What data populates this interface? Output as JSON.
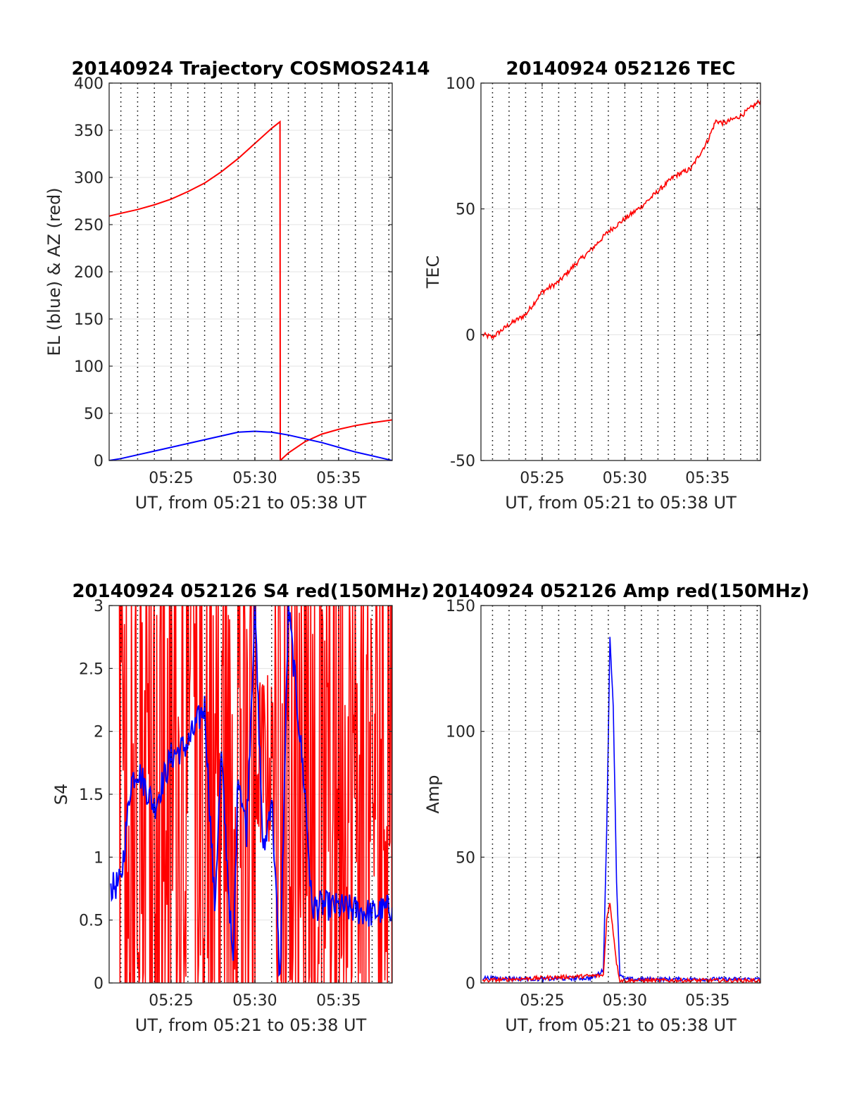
{
  "chart_data": [
    {
      "type": "line",
      "title": "20140924 Trajectory COSMOS2414",
      "xlabel": "UT, from 05:21 to 05:38 UT",
      "ylabel": "EL (blue) & AZ (red)",
      "xlim_minutes": [
        321.3,
        338.2
      ],
      "ylim": [
        0,
        400
      ],
      "yticks": [
        0,
        50,
        100,
        150,
        200,
        250,
        300,
        350,
        400
      ],
      "xticks": [
        "05:25",
        "05:30",
        "05:35"
      ],
      "grid": "y solid, x dotted minute lines",
      "series": [
        {
          "color": "#ff0000",
          "x": [
            "05:21:18",
            "05:22",
            "05:23",
            "05:24",
            "05:25",
            "05:26",
            "05:27",
            "05:28",
            "05:29",
            "05:30",
            "05:31",
            "05:31:30",
            "05:31:31",
            "05:32",
            "05:33",
            "05:34",
            "05:35",
            "05:36",
            "05:37",
            "05:38:12"
          ],
          "values": [
            259,
            262,
            266,
            271,
            277,
            285,
            294,
            306,
            320,
            336,
            352,
            359,
            0,
            8,
            20,
            28,
            33,
            37,
            40,
            43
          ]
        },
        {
          "color": "#0000ff",
          "x": [
            "05:21:18",
            "05:22",
            "05:23",
            "05:24",
            "05:25",
            "05:26",
            "05:27",
            "05:28",
            "05:29",
            "05:30",
            "05:31",
            "05:32",
            "05:33",
            "05:34",
            "05:35",
            "05:36",
            "05:37",
            "05:38:12"
          ],
          "values": [
            0,
            2,
            6,
            10,
            14,
            18,
            22,
            26,
            30,
            31,
            30,
            27,
            23,
            19,
            14,
            9,
            5,
            0
          ]
        }
      ]
    },
    {
      "type": "line",
      "title": "20140924 052126 TEC",
      "xlabel": "UT, from 05:21 to 05:38 UT",
      "ylabel": "TEC",
      "xlim_minutes": [
        321.3,
        338.2
      ],
      "ylim": [
        -50,
        100
      ],
      "yticks": [
        -50,
        0,
        50,
        100
      ],
      "xticks": [
        "05:25",
        "05:30",
        "05:35"
      ],
      "grid": "y solid, x dotted minute lines",
      "series": [
        {
          "color": "#ff0000",
          "x": [
            "05:21:24",
            "05:22",
            "05:23",
            "05:24",
            "05:25",
            "05:26",
            "05:27",
            "05:28",
            "05:29",
            "05:30",
            "05:31",
            "05:32",
            "05:33",
            "05:34",
            "05:35",
            "05:35:30",
            "05:36",
            "05:37",
            "05:38:12"
          ],
          "values": [
            0,
            -1,
            4,
            8,
            17,
            21,
            28,
            34,
            41,
            46,
            51,
            57,
            63,
            66,
            77,
            85,
            84,
            87,
            93
          ]
        }
      ]
    },
    {
      "type": "line",
      "title": "20140924 052126 S4 red(150MHz)",
      "xlabel": "UT, from 05:21 to 05:38 UT",
      "ylabel": "S4",
      "xlim_minutes": [
        321.3,
        338.2
      ],
      "ylim": [
        0,
        3
      ],
      "yticks": [
        0,
        0.5,
        1,
        1.5,
        2,
        2.5,
        3
      ],
      "xticks": [
        "05:25",
        "05:30",
        "05:35"
      ],
      "grid": "y solid, x dotted minute lines",
      "series": [
        {
          "color": "#0000ff",
          "x": [
            "05:21:24",
            "05:22",
            "05:22:36",
            "05:23",
            "05:24",
            "05:25",
            "05:26",
            "05:27",
            "05:27:36",
            "05:28",
            "05:28:42",
            "05:29",
            "05:29:30",
            "05:30",
            "05:30:30",
            "05:31",
            "05:31:30",
            "05:32",
            "05:33",
            "05:33:24",
            "05:34",
            "05:35",
            "05:36",
            "05:37",
            "05:38:12"
          ],
          "values": [
            0.75,
            0.8,
            1.6,
            1.7,
            1.4,
            1.8,
            1.9,
            2.2,
            0.6,
            1.8,
            0.1,
            1.7,
            1.2,
            3.0,
            1.0,
            1.5,
            0.0,
            3.0,
            1.5,
            0.6,
            0.62,
            0.6,
            0.58,
            0.55,
            0.6
          ]
        },
        {
          "color": "#ff0000",
          "description_values": "dense noisy bursts spanning 0 to 3 across most of the interval"
        }
      ]
    },
    {
      "type": "line",
      "title": "20140924 052126 Amp red(150MHz)",
      "xlabel": "UT, from 05:21 to 05:38 UT",
      "ylabel": "Amp",
      "xlim_minutes": [
        321.3,
        338.2
      ],
      "ylim": [
        0,
        150
      ],
      "yticks": [
        0,
        50,
        100,
        150
      ],
      "xticks": [
        "05:25",
        "05:30",
        "05:35"
      ],
      "grid": "y solid, x dotted minute lines",
      "series": [
        {
          "color": "#0000ff",
          "x": [
            "05:21:24",
            "05:25",
            "05:28",
            "05:28:42",
            "05:28:54",
            "05:29:06",
            "05:29:18",
            "05:29:30",
            "05:29:42",
            "05:30",
            "05:33",
            "05:38:12"
          ],
          "values": [
            2,
            1.5,
            2,
            5,
            60,
            137,
            110,
            40,
            3,
            1.5,
            1.5,
            1.5
          ]
        },
        {
          "color": "#ff0000",
          "x": [
            "05:21:24",
            "05:28:42",
            "05:28:54",
            "05:29:06",
            "05:29:18",
            "05:29:30",
            "05:29:42",
            "05:38:12"
          ],
          "values": [
            1,
            3,
            25,
            32,
            20,
            8,
            1,
            1
          ]
        }
      ]
    }
  ]
}
